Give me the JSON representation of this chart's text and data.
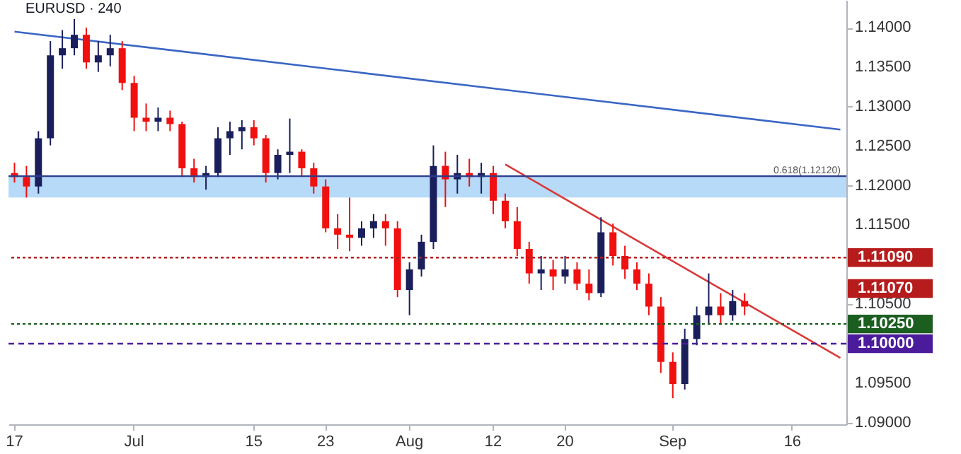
{
  "chart_data": {
    "type": "candlestick",
    "title": "EURUSD · 240",
    "categories": [
      "17",
      null,
      null,
      null,
      null,
      null,
      null,
      null,
      null,
      null,
      "Jul",
      null,
      null,
      null,
      null,
      null,
      null,
      null,
      null,
      null,
      "15",
      null,
      null,
      null,
      null,
      null,
      "23",
      null,
      null,
      null,
      null,
      null,
      null,
      "Aug",
      null,
      null,
      null,
      null,
      null,
      null,
      "12",
      null,
      null,
      null,
      null,
      null,
      "20",
      null,
      null,
      null,
      null,
      null,
      null,
      null,
      null,
      "Sep",
      null,
      null,
      null,
      null,
      null,
      null,
      null,
      null,
      null,
      "16",
      null,
      null,
      null,
      null
    ],
    "ohlc": [
      [
        1.1216,
        1.1229,
        1.1204,
        1.1211
      ],
      [
        1.1211,
        1.1225,
        1.1185,
        1.1199
      ],
      [
        1.1199,
        1.1269,
        1.119,
        1.126
      ],
      [
        1.126,
        1.1383,
        1.1251,
        1.1365
      ],
      [
        1.1365,
        1.1397,
        1.1348,
        1.1374
      ],
      [
        1.1374,
        1.1411,
        1.1365,
        1.1391
      ],
      [
        1.1391,
        1.14,
        1.1348,
        1.1356
      ],
      [
        1.1356,
        1.1383,
        1.1344,
        1.1365
      ],
      [
        1.1365,
        1.1391,
        1.1351,
        1.1374
      ],
      [
        1.1374,
        1.1383,
        1.1321,
        1.133
      ],
      [
        1.133,
        1.1339,
        1.1269,
        1.1286
      ],
      [
        1.1286,
        1.1304,
        1.1269,
        1.1281
      ],
      [
        1.1281,
        1.1299,
        1.1269,
        1.1286
      ],
      [
        1.1286,
        1.1295,
        1.1269,
        1.1278
      ],
      [
        1.1278,
        1.1281,
        1.1211,
        1.1222
      ],
      [
        1.1222,
        1.1234,
        1.1204,
        1.1211
      ],
      [
        1.1211,
        1.1225,
        1.1195,
        1.1216
      ],
      [
        1.1216,
        1.1274,
        1.1211,
        1.126
      ],
      [
        1.126,
        1.1281,
        1.1239,
        1.1269
      ],
      [
        1.1269,
        1.1283,
        1.1246,
        1.1274
      ],
      [
        1.1274,
        1.1283,
        1.1251,
        1.126
      ],
      [
        1.126,
        1.1264,
        1.1204,
        1.1216
      ],
      [
        1.1216,
        1.1246,
        1.1208,
        1.1239
      ],
      [
        1.1239,
        1.1285,
        1.1216,
        1.1243
      ],
      [
        1.1243,
        1.1246,
        1.1211,
        1.1222
      ],
      [
        1.1222,
        1.1229,
        1.119,
        1.1199
      ],
      [
        1.1199,
        1.1208,
        1.1141,
        1.1146
      ],
      [
        1.1146,
        1.1164,
        1.112,
        1.1138
      ],
      [
        1.1138,
        1.1185,
        1.1117,
        1.1134
      ],
      [
        1.1134,
        1.1155,
        1.1124,
        1.1146
      ],
      [
        1.1146,
        1.1164,
        1.1134,
        1.1155
      ],
      [
        1.1155,
        1.1164,
        1.1124,
        1.1146
      ],
      [
        1.1146,
        1.1155,
        1.1059,
        1.1068
      ],
      [
        1.1068,
        1.1103,
        1.1036,
        1.1094
      ],
      [
        1.1094,
        1.1138,
        1.1085,
        1.1129
      ],
      [
        1.1129,
        1.1251,
        1.112,
        1.1225
      ],
      [
        1.1225,
        1.1243,
        1.1173,
        1.1208
      ],
      [
        1.1208,
        1.1239,
        1.119,
        1.1216
      ],
      [
        1.1216,
        1.1234,
        1.1199,
        1.1211
      ],
      [
        1.1211,
        1.1229,
        1.119,
        1.1216
      ],
      [
        1.1216,
        1.1225,
        1.1164,
        1.1181
      ],
      [
        1.1181,
        1.119,
        1.1146,
        1.1155
      ],
      [
        1.1155,
        1.1173,
        1.1111,
        1.112
      ],
      [
        1.112,
        1.1129,
        1.1076,
        1.1089
      ],
      [
        1.1089,
        1.1111,
        1.1068,
        1.1094
      ],
      [
        1.1094,
        1.1106,
        1.1068,
        1.1085
      ],
      [
        1.1085,
        1.1111,
        1.1076,
        1.1094
      ],
      [
        1.1094,
        1.1103,
        1.1068,
        1.1076
      ],
      [
        1.1076,
        1.1094,
        1.1055,
        1.1064
      ],
      [
        1.1064,
        1.116,
        1.1059,
        1.1141
      ],
      [
        1.1141,
        1.1152,
        1.1099,
        1.1111
      ],
      [
        1.1111,
        1.1124,
        1.1082,
        1.1094
      ],
      [
        1.1094,
        1.1103,
        1.1068,
        1.1076
      ],
      [
        1.1076,
        1.1089,
        1.1036,
        1.1047
      ],
      [
        1.1047,
        1.1059,
        1.0963,
        1.0977
      ],
      [
        1.0977,
        1.0989,
        1.0931,
        1.0949
      ],
      [
        1.0949,
        1.1019,
        1.0942,
        1.1006
      ],
      [
        1.1006,
        1.1047,
        1.0998,
        1.1036
      ],
      [
        1.1036,
        1.1089,
        1.1024,
        1.1047
      ],
      [
        1.1047,
        1.1064,
        1.1024,
        1.1036
      ],
      [
        1.1036,
        1.1068,
        1.1029,
        1.1054
      ],
      [
        1.1054,
        1.1064,
        1.1036,
        1.1047
      ],
      null,
      null,
      null,
      null,
      null,
      null,
      null,
      null
    ],
    "colors": [
      "#f01010",
      "#f01010",
      "#1a1f5c",
      "#1a1f5c",
      "#1a1f5c",
      "#1a1f5c",
      "#f01010",
      "#1a1f5c",
      "#1a1f5c",
      "#f01010",
      "#f01010",
      "#f01010",
      "#1a1f5c",
      "#f01010",
      "#f01010",
      "#f01010",
      "#1a1f5c",
      "#1a1f5c",
      "#1a1f5c",
      "#1a1f5c",
      "#f01010",
      "#f01010",
      "#1a1f5c",
      "#1a1f5c",
      "#f01010",
      "#f01010",
      "#f01010",
      "#f01010",
      "#f01010",
      "#1a1f5c",
      "#1a1f5c",
      "#f01010",
      "#f01010",
      "#1a1f5c",
      "#1a1f5c",
      "#1a1f5c",
      "#f01010",
      "#1a1f5c",
      "#f01010",
      "#1a1f5c",
      "#f01010",
      "#f01010",
      "#f01010",
      "#f01010",
      "#1a1f5c",
      "#f01010",
      "#1a1f5c",
      "#f01010",
      "#f01010",
      "#1a1f5c",
      "#f01010",
      "#f01010",
      "#f01010",
      "#f01010",
      "#f01010",
      "#f01010",
      "#1a1f5c",
      "#1a1f5c",
      "#1a1f5c",
      "#f01010",
      "#1a1f5c",
      "#f01010",
      null,
      null,
      null,
      null,
      null,
      null,
      null,
      null
    ],
    "series": [
      {
        "type": "line",
        "color": "#3a66c4",
        "values": [
          1.1395,
          null,
          null,
          null,
          null,
          null,
          null,
          null,
          null,
          null,
          null,
          null,
          null,
          null,
          null,
          null,
          null,
          null,
          null,
          null,
          null,
          null,
          null,
          null,
          null,
          null,
          null,
          null,
          null,
          null,
          null,
          null,
          null,
          null,
          null,
          null,
          null,
          null,
          null,
          null,
          null,
          null,
          null,
          null,
          null,
          null,
          null,
          null,
          null,
          null,
          null,
          null,
          null,
          null,
          null,
          null,
          null,
          null,
          null,
          null,
          null,
          null,
          null,
          null,
          null,
          null,
          null,
          null,
          null,
          1.1271
        ]
      },
      {
        "type": "line",
        "color": "#d93a3a",
        "values": [
          null,
          null,
          null,
          null,
          null,
          null,
          null,
          null,
          null,
          null,
          null,
          null,
          null,
          null,
          null,
          null,
          null,
          null,
          null,
          null,
          null,
          null,
          null,
          null,
          null,
          null,
          null,
          null,
          null,
          null,
          null,
          null,
          null,
          null,
          null,
          null,
          null,
          null,
          null,
          null,
          null,
          1.1227,
          null,
          null,
          null,
          null,
          null,
          null,
          null,
          null,
          null,
          null,
          null,
          null,
          null,
          null,
          null,
          null,
          null,
          null,
          null,
          null,
          null,
          null,
          null,
          null,
          null,
          null,
          null,
          1.0982
        ]
      }
    ],
    "ylim": [
      1.0898,
      1.1435
    ],
    "yticks": [
      {
        "value": 1.09,
        "label": "1.09000"
      },
      {
        "value": 1.095,
        "label": "1.09500"
      },
      {
        "value": 1.105,
        "label": "1.10500"
      },
      {
        "value": 1.115,
        "label": "1.11500"
      },
      {
        "value": 1.12,
        "label": "1.12000"
      },
      {
        "value": 1.125,
        "label": "1.12500"
      },
      {
        "value": 1.13,
        "label": "1.13000"
      },
      {
        "value": 1.135,
        "label": "1.13500"
      },
      {
        "value": 1.14,
        "label": "1.14000"
      }
    ],
    "bands": [
      {
        "axis": "y",
        "from": 1.1185,
        "to": 1.1212,
        "color": "#a9d3f7"
      }
    ],
    "ref_lines": [
      {
        "axis": "y",
        "value": 1.1212,
        "label": "0.618(1.12120)",
        "color": "#2c3e8c",
        "line_style": "solid"
      },
      {
        "axis": "y",
        "value": 1.1109,
        "label": "1.11090",
        "color": "#b71c1c",
        "line_style": "dotted"
      },
      {
        "axis": "y",
        "value": 1.1025,
        "label": "1.10250",
        "color": "#1b5e20",
        "line_style": "dotted"
      },
      {
        "axis": "y",
        "value": 1.1,
        "label": "1.10000",
        "color": "#4a1c9c",
        "line_style": "dashed"
      }
    ],
    "annotations": [
      "1.11070"
    ]
  }
}
